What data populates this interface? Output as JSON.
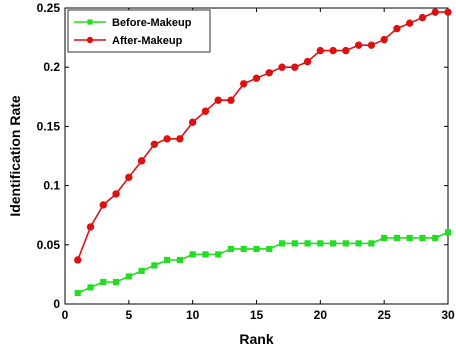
{
  "chart_data": {
    "type": "line",
    "xlabel": "Rank",
    "ylabel": "Identification Rate",
    "xlim": [
      0,
      30
    ],
    "ylim": [
      0,
      0.25
    ],
    "xticks": [
      0,
      5,
      10,
      15,
      20,
      25,
      30
    ],
    "xtick_labels": [
      "0",
      "5",
      "10",
      "15",
      "20",
      "25",
      "30"
    ],
    "yticks": [
      0,
      0.05,
      0.1,
      0.15,
      0.2,
      0.25
    ],
    "ytick_labels": [
      "0",
      "0.05",
      "0.1",
      "0.15",
      "0.2",
      "0.25"
    ],
    "grid": false,
    "legend_position": "top-left",
    "x": [
      1,
      2,
      3,
      4,
      5,
      6,
      7,
      8,
      9,
      10,
      11,
      12,
      13,
      14,
      15,
      16,
      17,
      18,
      19,
      20,
      21,
      22,
      23,
      24,
      25,
      26,
      27,
      28,
      29,
      30
    ],
    "series": [
      {
        "name": "Before-Makeup",
        "color": "#22dd22",
        "marker": "square",
        "values": [
          0.0093,
          0.014,
          0.0186,
          0.0186,
          0.0233,
          0.0279,
          0.0326,
          0.0372,
          0.0372,
          0.0419,
          0.0419,
          0.0419,
          0.0465,
          0.0465,
          0.0465,
          0.0465,
          0.0512,
          0.0512,
          0.0512,
          0.0512,
          0.0512,
          0.0512,
          0.0512,
          0.0512,
          0.0558,
          0.0558,
          0.0558,
          0.0558,
          0.0558,
          0.0605
        ]
      },
      {
        "name": "After-Makeup",
        "color": "#dd1111",
        "marker": "circle",
        "values": [
          0.0372,
          0.0651,
          0.0837,
          0.093,
          0.107,
          0.1209,
          0.1349,
          0.1395,
          0.1395,
          0.1535,
          0.1628,
          0.1721,
          0.1721,
          0.186,
          0.1907,
          0.1953,
          0.2,
          0.2,
          0.2047,
          0.214,
          0.214,
          0.214,
          0.2186,
          0.2186,
          0.2233,
          0.2326,
          0.2372,
          0.2419,
          0.2465,
          0.2465
        ]
      }
    ]
  }
}
